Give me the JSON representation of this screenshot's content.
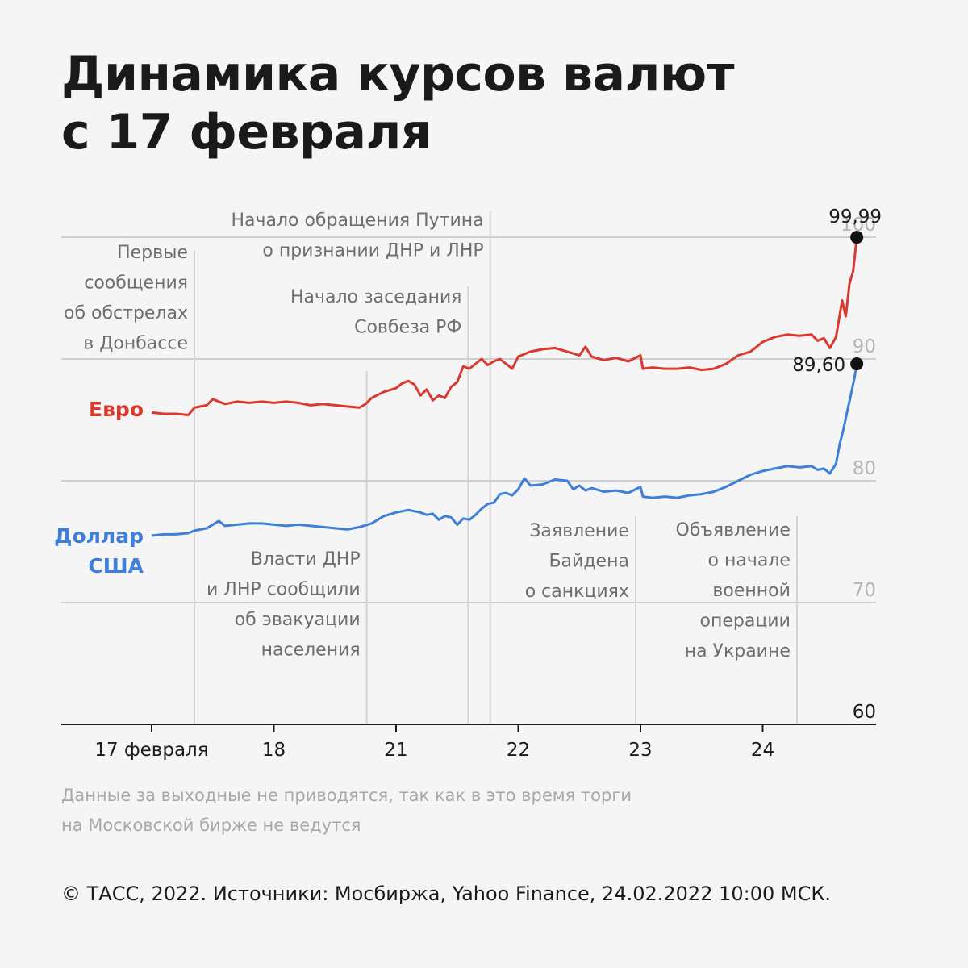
{
  "title_lines": [
    "Динамика курсов валют",
    "с 17 февраля"
  ],
  "footnote_lines": [
    "Данные за выходные не приводятся, так как в это время торги",
    "на Московской бирже не ведутся"
  ],
  "credit": "© ТАСС, 2022. Источники: Мосбиржа, Yahoo Finance, 24.02.2022 10:00 МСК.",
  "chart_data": {
    "type": "line",
    "ylim": [
      60,
      100
    ],
    "yticks": [
      {
        "value": 100,
        "label": "100"
      },
      {
        "value": 90,
        "label": "90"
      },
      {
        "value": 80,
        "label": "80"
      },
      {
        "value": 70,
        "label": "70"
      },
      {
        "value": 60,
        "label": "60"
      }
    ],
    "x_range": [
      -0.73,
      5.25
    ],
    "x_ticks": [
      {
        "pos": 0,
        "label": "17 февраля"
      },
      {
        "pos": 1,
        "label": "18"
      },
      {
        "pos": 2,
        "label": "21"
      },
      {
        "pos": 3,
        "label": "22"
      },
      {
        "pos": 4,
        "label": "23"
      },
      {
        "pos": 5,
        "label": "24"
      }
    ],
    "series": [
      {
        "name": "Евро",
        "color": "#d9392e",
        "end_value": 99.99,
        "end_label": "99,99",
        "points": [
          [
            0,
            85.6
          ],
          [
            0.1,
            85.5
          ],
          [
            0.2,
            85.5
          ],
          [
            0.3,
            85.4
          ],
          [
            0.35,
            86.0
          ],
          [
            0.45,
            86.2
          ],
          [
            0.5,
            86.7
          ],
          [
            0.6,
            86.3
          ],
          [
            0.7,
            86.5
          ],
          [
            0.8,
            86.4
          ],
          [
            0.9,
            86.5
          ],
          [
            1.0,
            86.4
          ],
          [
            1.1,
            86.5
          ],
          [
            1.2,
            86.4
          ],
          [
            1.3,
            86.2
          ],
          [
            1.4,
            86.3
          ],
          [
            1.5,
            86.2
          ],
          [
            1.6,
            86.1
          ],
          [
            1.7,
            86.0
          ],
          [
            1.75,
            86.3
          ],
          [
            1.8,
            86.8
          ],
          [
            1.9,
            87.3
          ],
          [
            2.0,
            87.6
          ],
          [
            2.05,
            88.0
          ],
          [
            2.1,
            88.2
          ],
          [
            2.15,
            87.9
          ],
          [
            2.2,
            87.0
          ],
          [
            2.25,
            87.5
          ],
          [
            2.3,
            86.6
          ],
          [
            2.35,
            87.0
          ],
          [
            2.4,
            86.8
          ],
          [
            2.45,
            87.7
          ],
          [
            2.5,
            88.1
          ],
          [
            2.55,
            89.4
          ],
          [
            2.6,
            89.2
          ],
          [
            2.65,
            89.6
          ],
          [
            2.7,
            90.0
          ],
          [
            2.75,
            89.5
          ],
          [
            2.8,
            89.8
          ],
          [
            2.85,
            90.0
          ],
          [
            2.9,
            89.6
          ],
          [
            2.95,
            89.2
          ],
          [
            3.0,
            90.2
          ],
          [
            3.1,
            90.6
          ],
          [
            3.2,
            90.8
          ],
          [
            3.3,
            90.9
          ],
          [
            3.4,
            90.6
          ],
          [
            3.5,
            90.3
          ],
          [
            3.55,
            91.0
          ],
          [
            3.6,
            90.2
          ],
          [
            3.7,
            89.9
          ],
          [
            3.8,
            90.1
          ],
          [
            3.9,
            89.8
          ],
          [
            4.0,
            90.3
          ],
          [
            4.02,
            89.2
          ],
          [
            4.1,
            89.3
          ],
          [
            4.2,
            89.2
          ],
          [
            4.3,
            89.2
          ],
          [
            4.4,
            89.3
          ],
          [
            4.5,
            89.1
          ],
          [
            4.6,
            89.2
          ],
          [
            4.7,
            89.6
          ],
          [
            4.8,
            90.3
          ],
          [
            4.9,
            90.6
          ],
          [
            5.0,
            91.4
          ],
          [
            5.1,
            91.8
          ],
          [
            5.2,
            92.0
          ],
          [
            5.3,
            91.9
          ],
          [
            5.4,
            92.0
          ],
          [
            5.45,
            91.5
          ],
          [
            5.5,
            91.7
          ],
          [
            5.55,
            90.9
          ],
          [
            5.6,
            91.8
          ],
          [
            5.65,
            94.8
          ],
          [
            5.68,
            93.5
          ],
          [
            5.71,
            96.2
          ],
          [
            5.74,
            97.2
          ],
          [
            5.77,
            99.99
          ]
        ]
      },
      {
        "name": "Доллар США",
        "name_lines": [
          "Доллар",
          "США"
        ],
        "color": "#3d7fd9",
        "end_value": 89.6,
        "end_label": "89,60",
        "points": [
          [
            0,
            75.5
          ],
          [
            0.1,
            75.6
          ],
          [
            0.2,
            75.6
          ],
          [
            0.3,
            75.7
          ],
          [
            0.35,
            75.9
          ],
          [
            0.45,
            76.1
          ],
          [
            0.5,
            76.4
          ],
          [
            0.55,
            76.7
          ],
          [
            0.6,
            76.3
          ],
          [
            0.7,
            76.4
          ],
          [
            0.8,
            76.5
          ],
          [
            0.9,
            76.5
          ],
          [
            1.0,
            76.4
          ],
          [
            1.1,
            76.3
          ],
          [
            1.2,
            76.4
          ],
          [
            1.3,
            76.3
          ],
          [
            1.4,
            76.2
          ],
          [
            1.5,
            76.1
          ],
          [
            1.6,
            76.0
          ],
          [
            1.7,
            76.2
          ],
          [
            1.8,
            76.5
          ],
          [
            1.9,
            77.1
          ],
          [
            2.0,
            77.4
          ],
          [
            2.05,
            77.5
          ],
          [
            2.1,
            77.6
          ],
          [
            2.15,
            77.5
          ],
          [
            2.2,
            77.4
          ],
          [
            2.25,
            77.2
          ],
          [
            2.3,
            77.3
          ],
          [
            2.35,
            76.8
          ],
          [
            2.4,
            77.1
          ],
          [
            2.45,
            77.0
          ],
          [
            2.5,
            76.4
          ],
          [
            2.55,
            76.9
          ],
          [
            2.6,
            76.8
          ],
          [
            2.65,
            77.2
          ],
          [
            2.7,
            77.7
          ],
          [
            2.75,
            78.1
          ],
          [
            2.8,
            78.2
          ],
          [
            2.85,
            78.9
          ],
          [
            2.9,
            79.0
          ],
          [
            2.95,
            78.8
          ],
          [
            3.0,
            79.3
          ],
          [
            3.05,
            80.2
          ],
          [
            3.1,
            79.6
          ],
          [
            3.2,
            79.7
          ],
          [
            3.3,
            80.1
          ],
          [
            3.4,
            80.0
          ],
          [
            3.45,
            79.3
          ],
          [
            3.5,
            79.6
          ],
          [
            3.55,
            79.2
          ],
          [
            3.6,
            79.4
          ],
          [
            3.7,
            79.1
          ],
          [
            3.8,
            79.2
          ],
          [
            3.9,
            79.0
          ],
          [
            4.0,
            79.5
          ],
          [
            4.02,
            78.7
          ],
          [
            4.1,
            78.6
          ],
          [
            4.2,
            78.7
          ],
          [
            4.3,
            78.6
          ],
          [
            4.4,
            78.8
          ],
          [
            4.5,
            78.9
          ],
          [
            4.6,
            79.1
          ],
          [
            4.7,
            79.5
          ],
          [
            4.8,
            80.0
          ],
          [
            4.9,
            80.5
          ],
          [
            5.0,
            80.8
          ],
          [
            5.1,
            81.0
          ],
          [
            5.2,
            81.2
          ],
          [
            5.3,
            81.1
          ],
          [
            5.4,
            81.2
          ],
          [
            5.45,
            80.9
          ],
          [
            5.5,
            81.0
          ],
          [
            5.55,
            80.6
          ],
          [
            5.6,
            81.4
          ],
          [
            5.63,
            83.0
          ],
          [
            5.66,
            84.2
          ],
          [
            5.69,
            85.6
          ],
          [
            5.72,
            87.0
          ],
          [
            5.75,
            88.4
          ],
          [
            5.77,
            89.6
          ]
        ]
      }
    ],
    "annotations": [
      {
        "pos": 0.35,
        "lines": [
          "Первые",
          "сообщения",
          "об обстрелах",
          "в Донбассе"
        ]
      },
      {
        "pos": 1.76,
        "lines": [
          "Власти ДНР",
          "и ЛНР сообщили",
          "об эвакуации",
          "населения"
        ]
      },
      {
        "pos": 2.59,
        "lines": [
          "Начало заседания",
          "Совбеза РФ"
        ]
      },
      {
        "pos": 2.77,
        "lines": [
          "Начало обращения Путина",
          "о признании ДНР и ЛНР"
        ]
      },
      {
        "pos": 3.96,
        "lines": [
          "Заявление",
          "Байдена",
          "о санкциях"
        ]
      },
      {
        "pos": 5.28,
        "lines": [
          "Объявление",
          "о начале",
          "военной",
          "операции",
          "на Украине"
        ]
      }
    ]
  }
}
